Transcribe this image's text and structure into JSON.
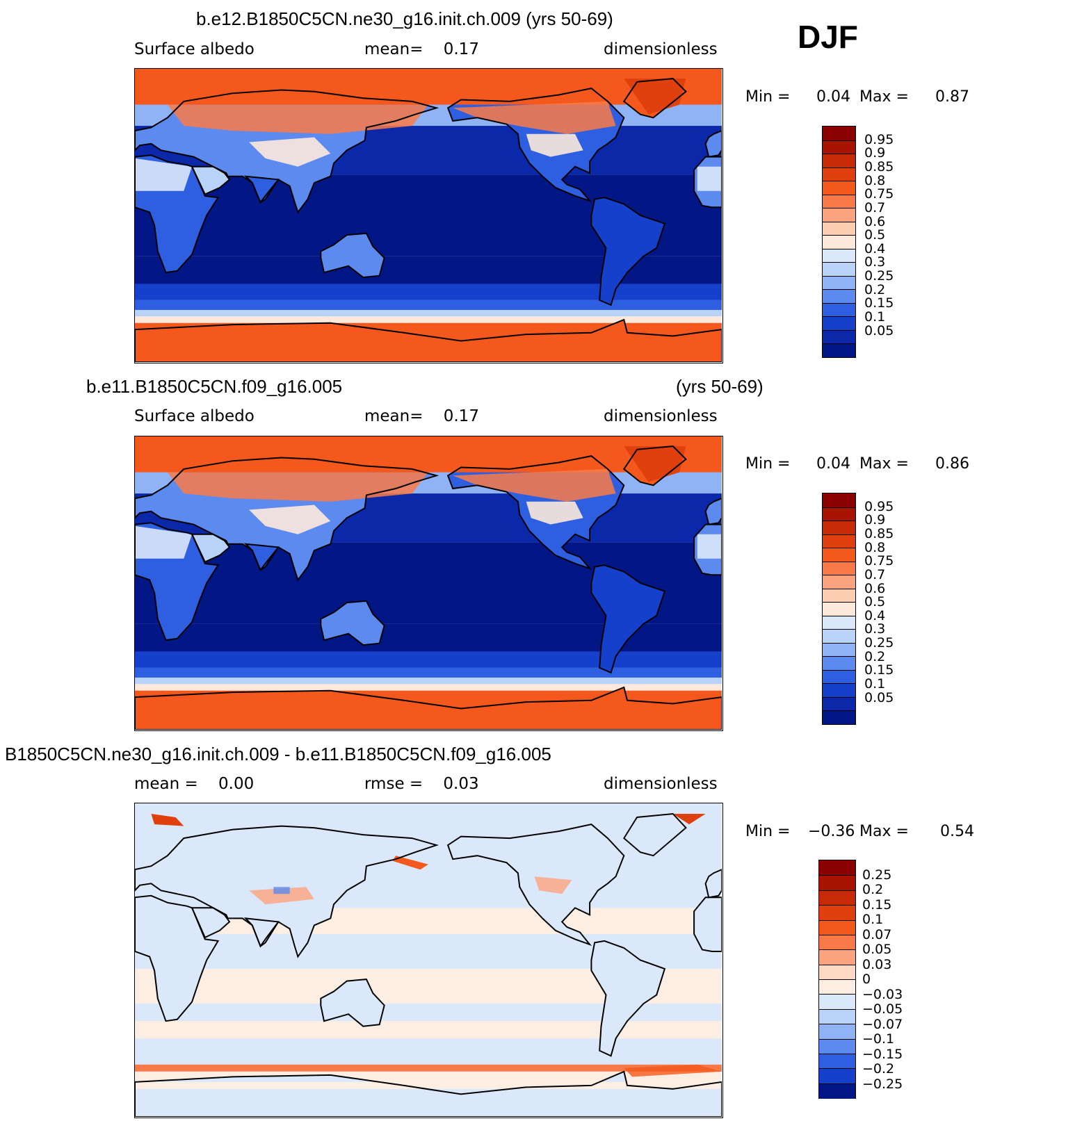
{
  "season": "DJF",
  "panels": [
    {
      "id": "test",
      "case_title": "b.e12.B1850C5CN.ne30_g16.init.ch.009 (yrs 50-69)",
      "left_label": "Surface albedo",
      "center_label": "mean=    0.17",
      "right_label": "dimensionless",
      "min_label": "Min =",
      "min_value": "0.04",
      "max_label": "Max =",
      "max_value": "0.87",
      "scheme": "abs"
    },
    {
      "id": "control",
      "case_title": "b.e11.B1850C5CN.f09_g16.005",
      "case_years": "(yrs 50-69)",
      "left_label": "Surface albedo",
      "center_label": "mean=    0.17",
      "right_label": "dimensionless",
      "min_label": "Min =",
      "min_value": "0.04",
      "max_label": "Max =",
      "max_value": "0.86",
      "scheme": "abs"
    },
    {
      "id": "difference",
      "case_title": "B1850C5CN.ne30_g16.init.ch.009 - b.e11.B1850C5CN.f09_g16.005",
      "left_label": "mean =    0.00",
      "center_label": "rmse =    0.03",
      "right_label": "dimensionless",
      "min_label": "Min =",
      "min_value": "−0.36",
      "max_label": "Max =",
      "max_value": "0.54",
      "scheme": "diff"
    }
  ],
  "colorbars": {
    "abs": {
      "labels": [
        "0.95",
        "0.9",
        "0.85",
        "0.8",
        "0.75",
        "0.7",
        "0.6",
        "0.5",
        "0.4",
        "0.3",
        "0.25",
        "0.2",
        "0.15",
        "0.1",
        "0.05"
      ],
      "colors": [
        "#8b0000",
        "#a81400",
        "#c62a06",
        "#e0400e",
        "#f4581c",
        "#f97a48",
        "#fca27e",
        "#fdcdb1",
        "#fde9dc",
        "#dbe8fa",
        "#b8d2f8",
        "#8fb3f4",
        "#5d8aee",
        "#2e5fe0",
        "#1540cc",
        "#0a28a8",
        "#031686"
      ]
    },
    "diff": {
      "labels": [
        "0.25",
        "0.2",
        "0.15",
        "0.1",
        "0.07",
        "0.05",
        "0.03",
        "0",
        "−0.03",
        "−0.05",
        "−0.07",
        "−0.1",
        "−0.15",
        "−0.2",
        "−0.25"
      ],
      "colors": [
        "#8b0000",
        "#a81400",
        "#c62a06",
        "#e0400e",
        "#f4581c",
        "#f97a48",
        "#fca27e",
        "#fdd8c2",
        "#fdeee3",
        "#dbe8fa",
        "#b8d2f8",
        "#8fb3f4",
        "#5d8aee",
        "#2e5fe0",
        "#1540cc",
        "#031686"
      ]
    }
  }
}
